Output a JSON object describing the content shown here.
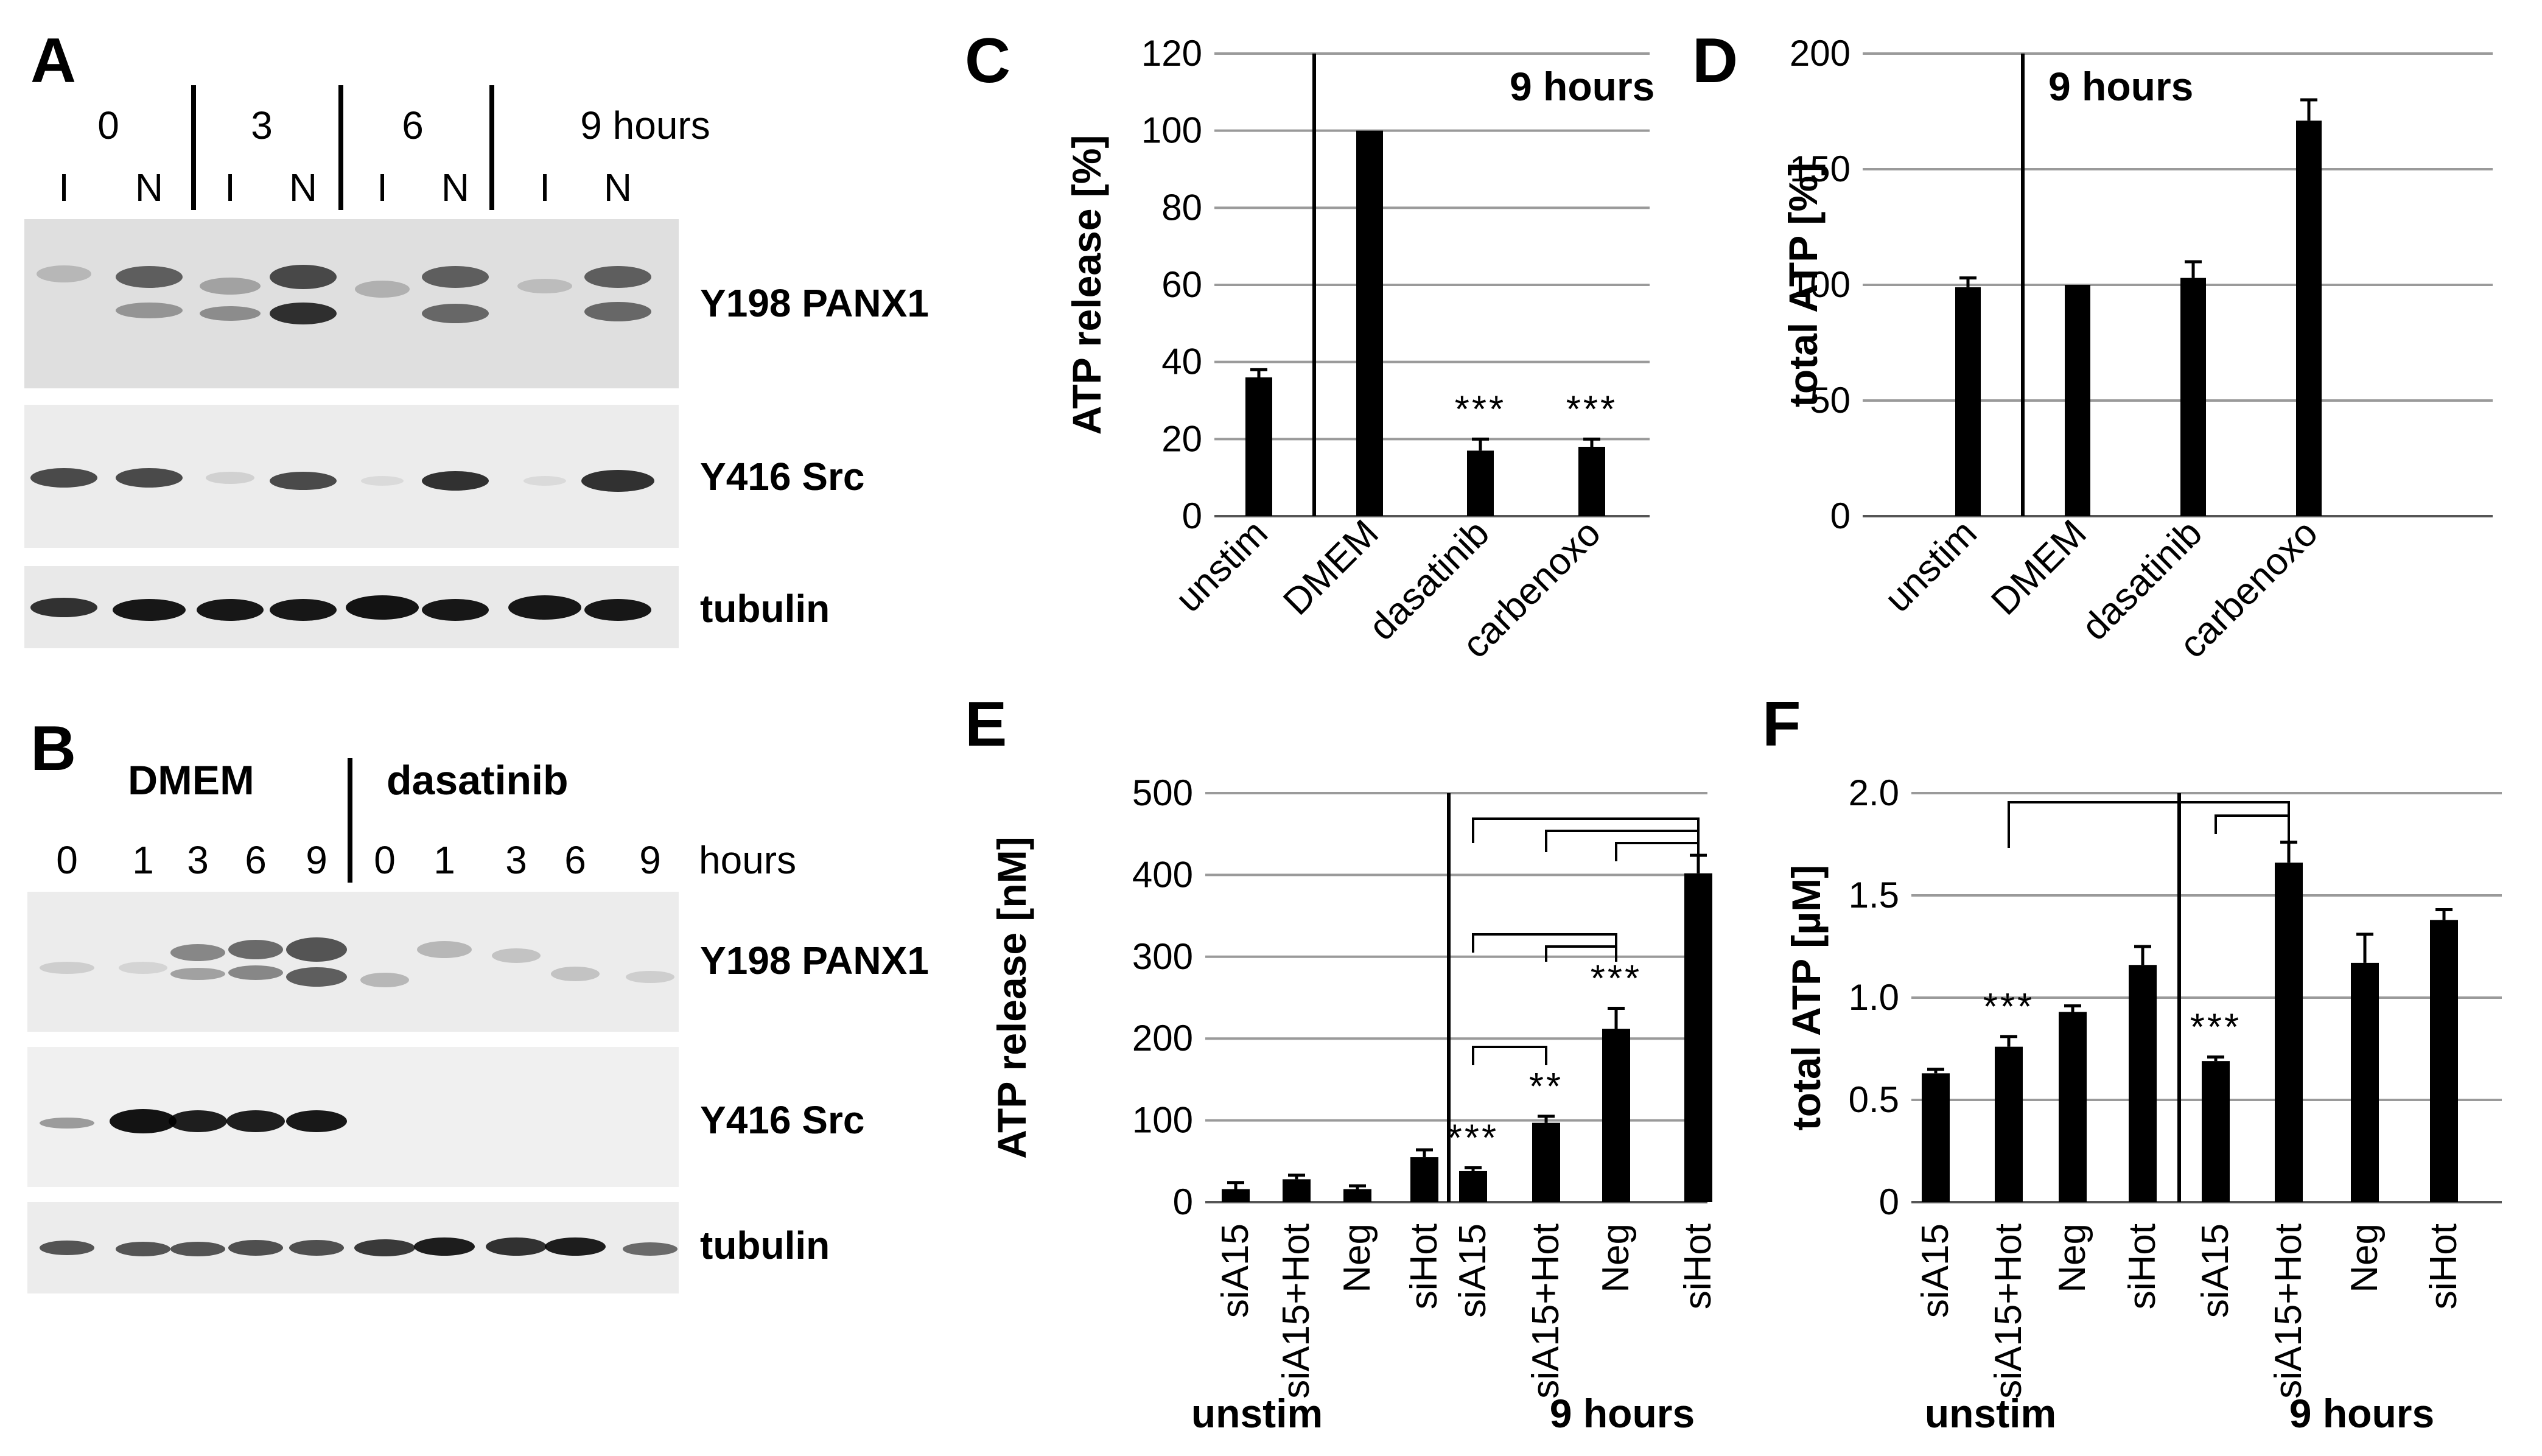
{
  "panels": {
    "A": {
      "letter": "A",
      "time_labels": [
        "0",
        "3",
        "6",
        "9 hours"
      ],
      "lane_labels": [
        "I",
        "N",
        "I",
        "N",
        "I",
        "N",
        "I",
        "N"
      ],
      "blots": [
        "Y198 PANX1",
        "Y416 Src",
        "tubulin"
      ]
    },
    "B": {
      "letter": "B",
      "groups": [
        "DMEM",
        "dasatinib"
      ],
      "time_labels": [
        "0",
        "1",
        "3",
        "6",
        "9",
        "0",
        "1",
        "3",
        "6",
        "9"
      ],
      "time_unit": "hours",
      "blots": [
        "Y198 PANX1",
        "Y416 Src",
        "tubulin"
      ]
    }
  },
  "chart_data": [
    {
      "id": "C",
      "letter": "C",
      "type": "bar",
      "title": "9 hours",
      "ylabel": "ATP release [%]",
      "ylim": [
        0,
        120
      ],
      "yticks": [
        "0",
        "20",
        "40",
        "60",
        "80",
        "100",
        "120"
      ],
      "categories": [
        "unstim",
        "DMEM",
        "dasatinib",
        "carbenoxo"
      ],
      "values": [
        36,
        100,
        17,
        18
      ],
      "errors": [
        2,
        0,
        3,
        2
      ],
      "significance": [
        "",
        "",
        "***",
        "***"
      ],
      "grid": true
    },
    {
      "id": "D",
      "letter": "D",
      "type": "bar",
      "title": "9 hours",
      "ylabel": "total ATP [%]",
      "ylim": [
        0,
        200
      ],
      "yticks": [
        "0",
        "50",
        "100",
        "150",
        "200"
      ],
      "categories": [
        "unstim",
        "DMEM",
        "dasatinib",
        "carbenoxo"
      ],
      "values": [
        99,
        100,
        103,
        171
      ],
      "errors": [
        4,
        0,
        7,
        9
      ],
      "grid": true
    },
    {
      "id": "E",
      "letter": "E",
      "type": "bar",
      "ylabel": "ATP release [nM]",
      "ylim": [
        0,
        500
      ],
      "yticks": [
        "0",
        "100",
        "200",
        "300",
        "400",
        "500"
      ],
      "categories": [
        "siA15",
        "siA15+Hot",
        "Neg",
        "siHot",
        "siA15",
        "siA15+Hot",
        "Neg",
        "siHot"
      ],
      "values": [
        16,
        28,
        16,
        55,
        38,
        97,
        212,
        402
      ],
      "errors": [
        8,
        5,
        4,
        9,
        4,
        8,
        25,
        22
      ],
      "significance": [
        "",
        "",
        "",
        "",
        "***",
        "**",
        "***",
        ""
      ],
      "groups": [
        "unstim",
        "9 hours"
      ],
      "grid": true
    },
    {
      "id": "F",
      "letter": "F",
      "type": "bar",
      "ylabel": "total ATP [µM]",
      "ylim": [
        0,
        2.0
      ],
      "yticks": [
        "0",
        "0.5",
        "1.0",
        "1.5",
        "2.0"
      ],
      "categories": [
        "siA15",
        "siA15+Hot",
        "Neg",
        "siHot",
        "siA15",
        "siA15+Hot",
        "Neg",
        "siHot"
      ],
      "values": [
        0.63,
        0.76,
        0.93,
        1.16,
        0.69,
        1.66,
        1.17,
        1.38
      ],
      "errors": [
        0.02,
        0.05,
        0.03,
        0.09,
        0.02,
        0.1,
        0.14,
        0.05
      ],
      "significance": [
        "",
        "***",
        "",
        "",
        "***",
        "",
        "",
        ""
      ],
      "groups": [
        "unstim",
        "9 hours"
      ],
      "grid": true
    }
  ]
}
